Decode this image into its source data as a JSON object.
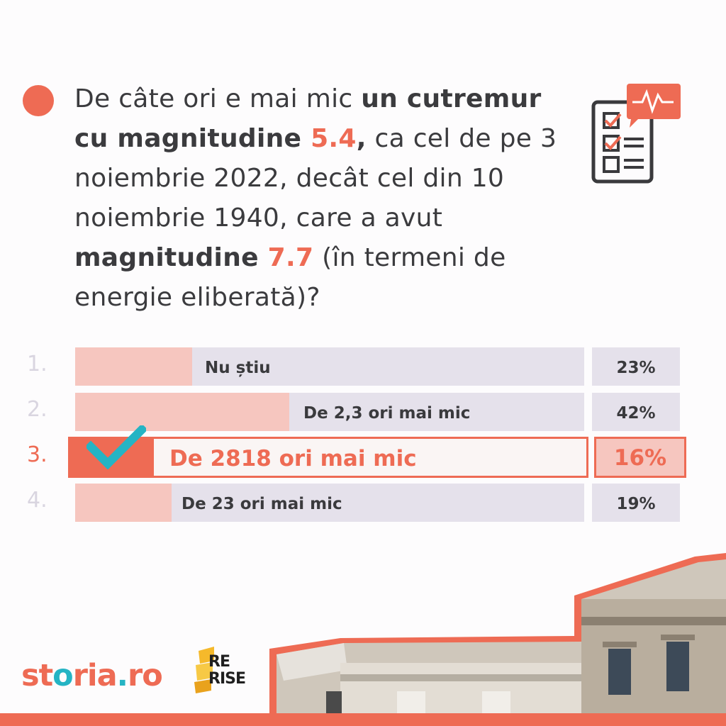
{
  "question": {
    "parts": [
      {
        "t": "De câte ori e mai mic ",
        "s": "normal"
      },
      {
        "t": "un cutremur cu magnitudine ",
        "s": "bold"
      },
      {
        "t": "5.4",
        "s": "num"
      },
      {
        "t": ",",
        "s": "bold"
      },
      {
        "t": " ca cel de pe 3 noiembrie 2022, decât cel din 10 noiembrie 1940, care a avut ",
        "s": "normal"
      },
      {
        "t": "magnitudine ",
        "s": "bold"
      },
      {
        "t": "7.7",
        "s": "num"
      },
      {
        "t": " (în termeni de energie eliberată)?",
        "s": "normal"
      }
    ]
  },
  "options": [
    {
      "index": "1.",
      "label": "Nu știu",
      "percent_text": "23%",
      "share": 0.23,
      "correct": false
    },
    {
      "index": "2.",
      "label": "De 2,3 ori mai mic",
      "percent_text": "42%",
      "share": 0.42,
      "correct": false
    },
    {
      "index": "3.",
      "label": "De 2818 ori mai mic",
      "percent_text": "16%",
      "share": 0.16,
      "correct": true
    },
    {
      "index": "4.",
      "label": "De 23 ori mai mic",
      "percent_text": "19%",
      "share": 0.19,
      "correct": false
    }
  ],
  "logos": {
    "storia_part1": "st",
    "storia_part2": "o",
    "storia_part3": "ria",
    "storia_part4": ".",
    "storia_part5": "ro",
    "rerise_line1": "RE",
    "rerise_line2": "RISE"
  },
  "colors": {
    "accent": "#ee6b54",
    "teal": "#25b4c4",
    "bar_bg": "#e5e1eb",
    "bar_fill": "#f6c6bf",
    "text": "#3a3a3d"
  },
  "icons": [
    "survey-checklist-icon",
    "checkmark-icon",
    "building-illustration"
  ]
}
